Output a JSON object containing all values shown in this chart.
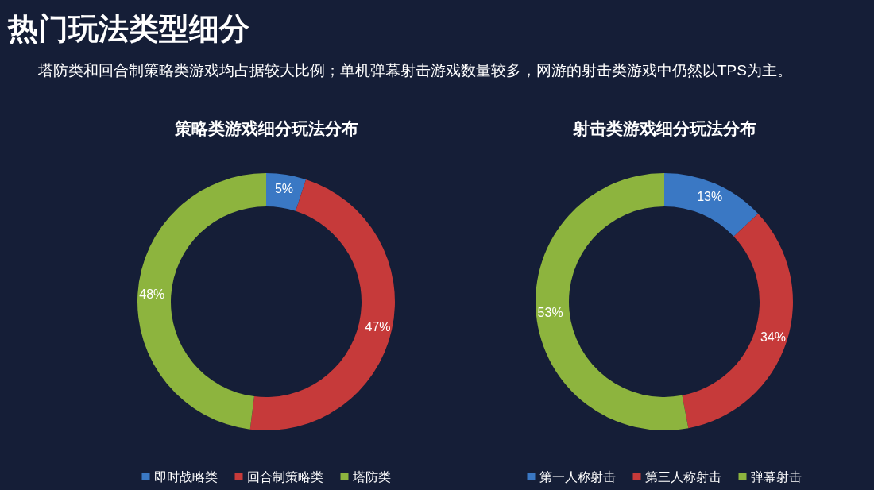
{
  "chart_data": [
    {
      "type": "other",
      "title": "热门玩法类型细分",
      "subtitle": "塔防类和回合制策略类游戏均占据较大比例；单机弹幕射击游戏数量较多，网游的射击类游戏中仍然以TPS为主。"
    },
    {
      "type": "donut",
      "title": "策略类游戏细分玩法分布",
      "categories": [
        "即时战略类",
        "回合制策略类",
        "塔防类"
      ],
      "values": [
        5,
        47,
        48
      ],
      "value_labels": [
        "5%",
        "47%",
        "48%"
      ],
      "colors": [
        "#3a78c4",
        "#c63a3a",
        "#8db43e"
      ],
      "legend": "bottom"
    },
    {
      "type": "donut",
      "title": "射击类游戏细分玩法分布",
      "categories": [
        "第一人称射击",
        "第三人称射击",
        "弹幕射击"
      ],
      "values": [
        13,
        34,
        53
      ],
      "value_labels": [
        "13%",
        "34%",
        "53%"
      ],
      "colors": [
        "#3a78c4",
        "#c63a3a",
        "#8db43e"
      ],
      "legend": "bottom"
    }
  ]
}
